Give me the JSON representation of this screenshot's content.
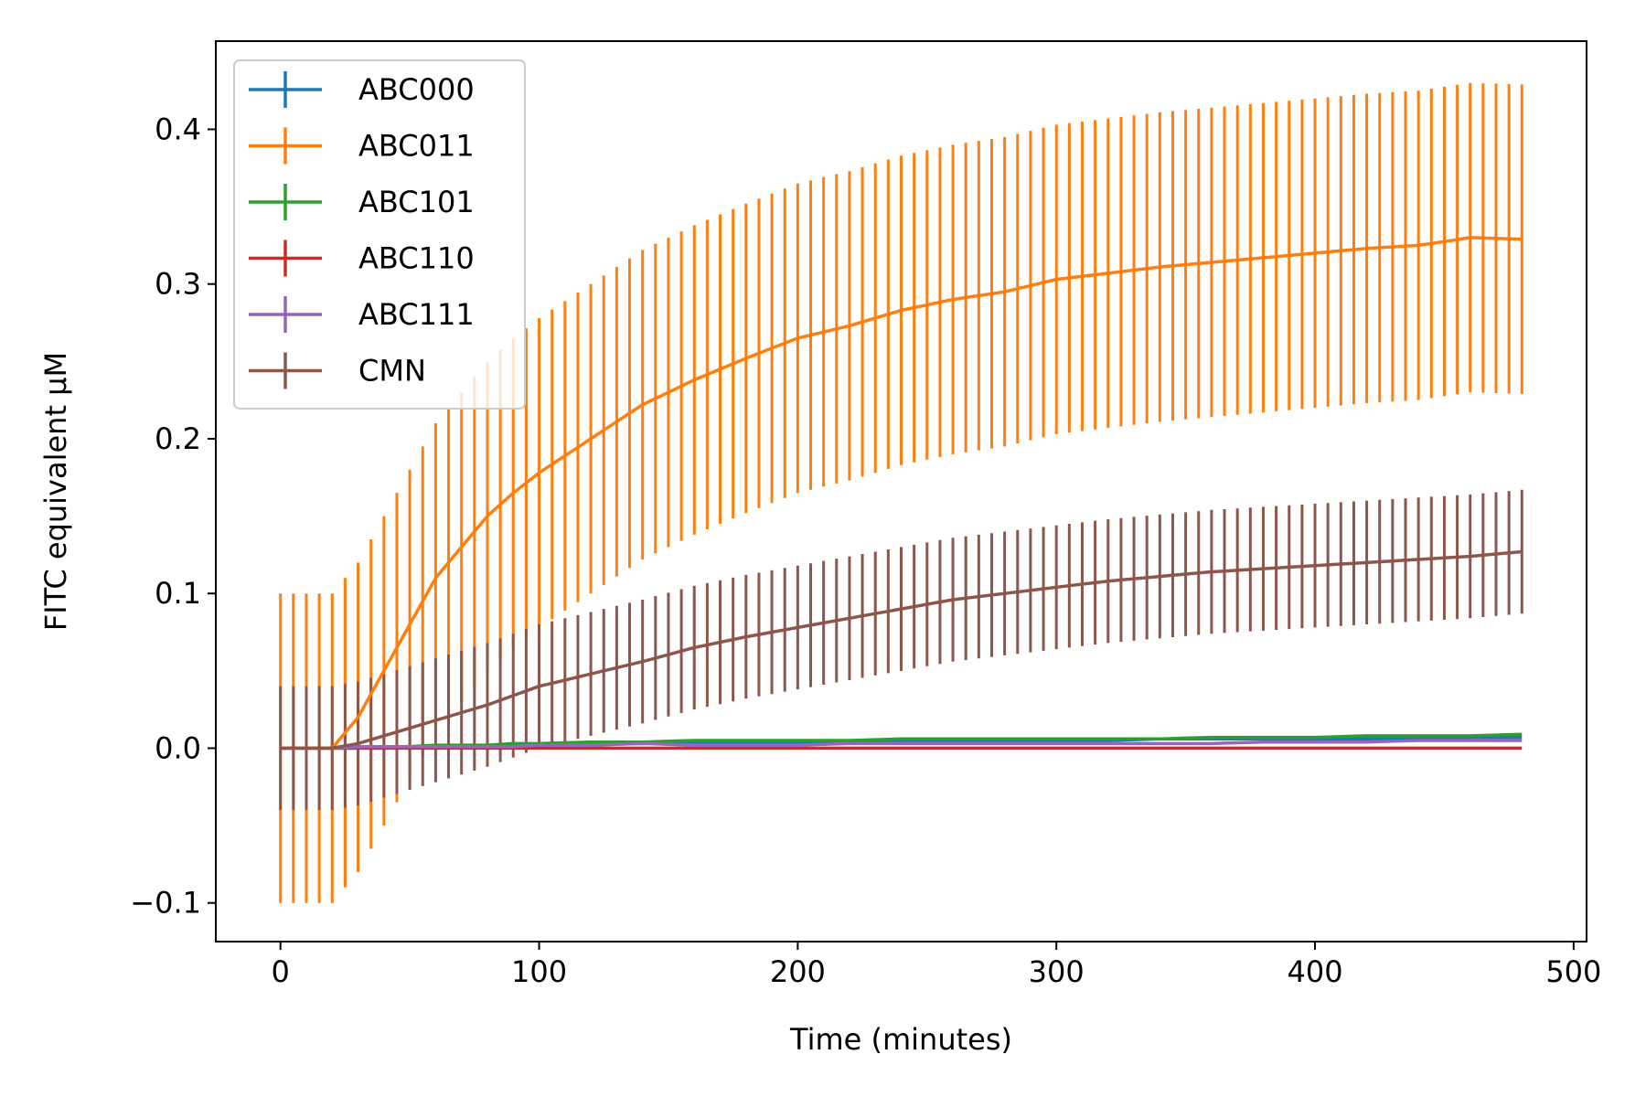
{
  "chart_data": {
    "type": "line",
    "title": "",
    "xlabel": "Time (minutes)",
    "ylabel": "FITC equivalent μM",
    "xlim": [
      -25,
      505
    ],
    "ylim": [
      -0.125,
      0.457
    ],
    "xticks": [
      0,
      100,
      200,
      300,
      400,
      500
    ],
    "xtick_labels": [
      "0",
      "100",
      "200",
      "300",
      "400",
      "500"
    ],
    "yticks": [
      -0.1,
      0.0,
      0.1,
      0.2,
      0.3,
      0.4
    ],
    "ytick_labels": [
      "−0.1",
      "0.0",
      "0.1",
      "0.2",
      "0.3",
      "0.4"
    ],
    "grid": false,
    "legend_position": "top-left",
    "x": [
      0,
      20,
      30,
      40,
      50,
      60,
      70,
      80,
      90,
      100,
      120,
      140,
      160,
      180,
      200,
      220,
      240,
      260,
      280,
      300,
      320,
      340,
      360,
      380,
      400,
      420,
      440,
      460,
      480
    ],
    "series": [
      {
        "name": "ABC000",
        "color": "#1f77b4",
        "values": [
          0,
          0,
          0,
          0,
          0.001,
          0.001,
          0.001,
          0.002,
          0.002,
          0.002,
          0.003,
          0.003,
          0.004,
          0.004,
          0.004,
          0.004,
          0.005,
          0.005,
          0.005,
          0.005,
          0.005,
          0.006,
          0.006,
          0.006,
          0.006,
          0.006,
          0.006,
          0.007,
          0.007
        ],
        "errors": [
          0,
          0,
          0,
          0,
          0,
          0,
          0,
          0,
          0,
          0,
          0,
          0,
          0,
          0,
          0,
          0,
          0,
          0,
          0,
          0,
          0,
          0,
          0,
          0,
          0,
          0,
          0,
          0,
          0
        ]
      },
      {
        "name": "ABC011",
        "color": "#ff7f0e",
        "values": [
          0,
          0,
          0.02,
          0.05,
          0.08,
          0.11,
          0.13,
          0.15,
          0.165,
          0.178,
          0.2,
          0.222,
          0.238,
          0.252,
          0.265,
          0.273,
          0.283,
          0.29,
          0.295,
          0.303,
          0.307,
          0.311,
          0.314,
          0.317,
          0.32,
          0.323,
          0.325,
          0.33,
          0.329
        ],
        "errors": [
          0.1,
          0.1,
          0.1,
          0.1,
          0.1,
          0.1,
          0.1,
          0.1,
          0.1,
          0.1,
          0.1,
          0.1,
          0.1,
          0.1,
          0.1,
          0.1,
          0.1,
          0.1,
          0.1,
          0.1,
          0.1,
          0.1,
          0.1,
          0.1,
          0.1,
          0.1,
          0.1,
          0.1,
          0.1
        ]
      },
      {
        "name": "ABC101",
        "color": "#2ca02c",
        "values": [
          0,
          0,
          0,
          0.001,
          0.001,
          0.002,
          0.002,
          0.002,
          0.003,
          0.003,
          0.004,
          0.004,
          0.005,
          0.005,
          0.005,
          0.005,
          0.006,
          0.006,
          0.006,
          0.006,
          0.006,
          0.006,
          0.007,
          0.007,
          0.007,
          0.008,
          0.008,
          0.008,
          0.009
        ],
        "errors": [
          0,
          0,
          0,
          0,
          0,
          0,
          0,
          0,
          0,
          0,
          0,
          0,
          0,
          0,
          0,
          0,
          0,
          0,
          0,
          0,
          0,
          0,
          0,
          0,
          0,
          0,
          0,
          0,
          0
        ]
      },
      {
        "name": "ABC110",
        "color": "#d62728",
        "values": [
          0,
          0,
          0,
          0,
          0,
          0,
          0,
          0,
          0,
          0,
          0,
          0,
          0,
          0,
          0,
          0,
          0,
          0,
          0,
          0,
          0,
          0,
          0,
          0,
          0,
          0,
          0,
          0,
          0
        ],
        "errors": [
          0,
          0,
          0,
          0,
          0,
          0,
          0,
          0,
          0,
          0,
          0,
          0,
          0,
          0,
          0,
          0,
          0,
          0,
          0,
          0,
          0,
          0,
          0,
          0,
          0,
          0,
          0,
          0,
          0
        ]
      },
      {
        "name": "ABC111",
        "color": "#9467bd",
        "values": [
          0,
          0,
          0.001,
          0.001,
          0.001,
          0.001,
          0.001,
          0.001,
          0.001,
          0.002,
          0.002,
          0.003,
          0.002,
          0.002,
          0.002,
          0.003,
          0.003,
          0.003,
          0.003,
          0.003,
          0.003,
          0.003,
          0.003,
          0.004,
          0.004,
          0.004,
          0.005,
          0.005,
          0.005
        ],
        "errors": [
          0,
          0,
          0,
          0,
          0,
          0,
          0,
          0,
          0,
          0,
          0,
          0,
          0,
          0,
          0,
          0,
          0,
          0,
          0,
          0,
          0,
          0,
          0,
          0,
          0,
          0,
          0,
          0,
          0
        ]
      },
      {
        "name": "CMN",
        "color": "#8c564b",
        "values": [
          0,
          0,
          0.003,
          0.008,
          0.013,
          0.018,
          0.023,
          0.028,
          0.034,
          0.04,
          0.048,
          0.056,
          0.065,
          0.072,
          0.078,
          0.084,
          0.09,
          0.096,
          0.1,
          0.104,
          0.108,
          0.111,
          0.114,
          0.116,
          0.118,
          0.12,
          0.122,
          0.124,
          0.127
        ],
        "errors": [
          0.04,
          0.04,
          0.04,
          0.04,
          0.04,
          0.04,
          0.04,
          0.04,
          0.04,
          0.04,
          0.04,
          0.04,
          0.04,
          0.04,
          0.04,
          0.04,
          0.04,
          0.04,
          0.04,
          0.04,
          0.04,
          0.04,
          0.04,
          0.04,
          0.04,
          0.04,
          0.04,
          0.04,
          0.04
        ]
      }
    ]
  }
}
